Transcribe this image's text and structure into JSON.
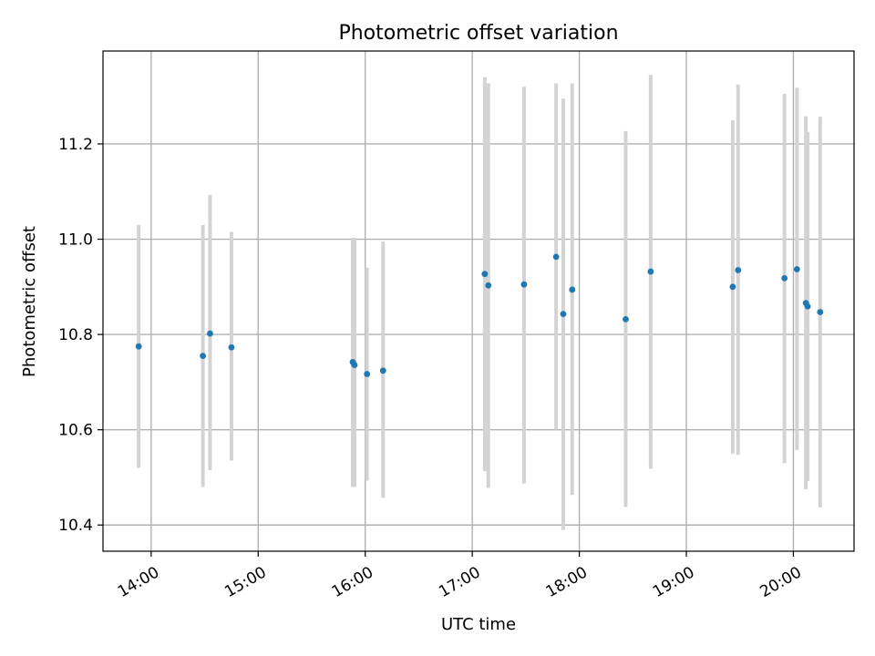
{
  "chart_data": {
    "type": "scatter",
    "title": "Photometric offset variation",
    "xlabel": "UTC time",
    "ylabel": "Photometric offset",
    "x_unit": "hours UTC",
    "xlim": [
      "13:33",
      "20:34"
    ],
    "ylim": [
      10.345,
      11.395
    ],
    "xticks": [
      "14:00",
      "15:00",
      "16:00",
      "17:00",
      "18:00",
      "19:00",
      "20:00"
    ],
    "yticks": [
      "10.4",
      "10.6",
      "10.8",
      "11.0",
      "11.2"
    ],
    "grid": true,
    "colors": {
      "points": "#1f77b4",
      "errorbars": "#d3d3d3",
      "grid": "#b0b0b0"
    },
    "series": [
      {
        "points": [
          {
            "x": "13:53",
            "y": 10.775,
            "err_low": 10.52,
            "err_high": 11.03
          },
          {
            "x": "14:29",
            "y": 10.755,
            "err_low": 10.48,
            "err_high": 11.03
          },
          {
            "x": "14:33",
            "y": 10.802,
            "err_low": 10.515,
            "err_high": 11.093
          },
          {
            "x": "14:45",
            "y": 10.773,
            "err_low": 10.535,
            "err_high": 11.015
          },
          {
            "x": "15:53",
            "y": 10.742,
            "err_low": 10.48,
            "err_high": 11.003
          },
          {
            "x": "15:54",
            "y": 10.736,
            "err_low": 10.48,
            "err_high": 11.003
          },
          {
            "x": "16:01",
            "y": 10.717,
            "err_low": 10.493,
            "err_high": 10.94
          },
          {
            "x": "16:10",
            "y": 10.724,
            "err_low": 10.457,
            "err_high": 10.995
          },
          {
            "x": "17:07",
            "y": 10.927,
            "err_low": 10.513,
            "err_high": 11.34
          },
          {
            "x": "17:09",
            "y": 10.903,
            "err_low": 10.478,
            "err_high": 11.327
          },
          {
            "x": "17:29",
            "y": 10.905,
            "err_low": 10.487,
            "err_high": 11.32
          },
          {
            "x": "17:47",
            "y": 10.963,
            "err_low": 10.6,
            "err_high": 11.327
          },
          {
            "x": "17:51",
            "y": 10.843,
            "err_low": 10.39,
            "err_high": 11.295
          },
          {
            "x": "17:56",
            "y": 10.894,
            "err_low": 10.463,
            "err_high": 11.327
          },
          {
            "x": "18:26",
            "y": 10.832,
            "err_low": 10.438,
            "err_high": 11.227
          },
          {
            "x": "18:40",
            "y": 10.932,
            "err_low": 10.518,
            "err_high": 11.345
          },
          {
            "x": "19:26",
            "y": 10.9,
            "err_low": 10.55,
            "err_high": 11.25
          },
          {
            "x": "19:29",
            "y": 10.935,
            "err_low": 10.547,
            "err_high": 11.325
          },
          {
            "x": "19:55",
            "y": 10.918,
            "err_low": 10.53,
            "err_high": 11.305
          },
          {
            "x": "20:02",
            "y": 10.937,
            "err_low": 10.557,
            "err_high": 11.318
          },
          {
            "x": "20:07",
            "y": 10.866,
            "err_low": 10.475,
            "err_high": 11.258
          },
          {
            "x": "20:08",
            "y": 10.859,
            "err_low": 10.492,
            "err_high": 11.225
          },
          {
            "x": "20:15",
            "y": 10.847,
            "err_low": 10.437,
            "err_high": 11.257
          }
        ]
      }
    ]
  }
}
